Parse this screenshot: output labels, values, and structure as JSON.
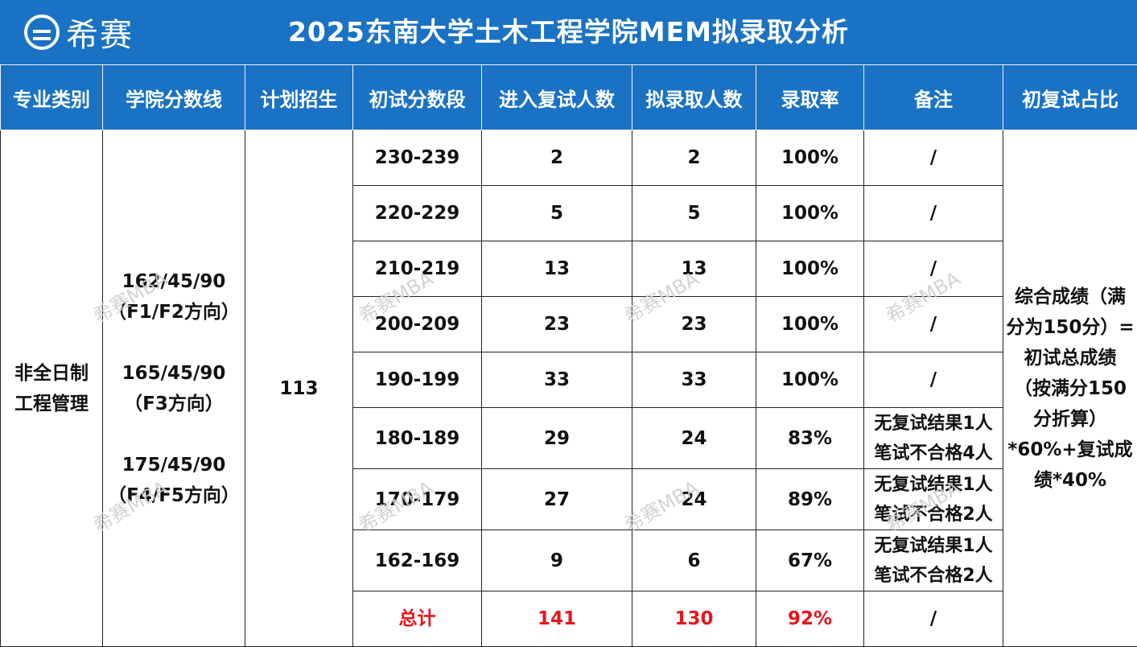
{
  "header": {
    "logo_text": "希赛",
    "title": "2025东南大学土木工程学院MEM拟录取分析"
  },
  "columns": [
    "专业类别",
    "学院分数线",
    "计划招生",
    "初试分数段",
    "进入复试人数",
    "拟录取人数",
    "录取率",
    "备注",
    "初复试占比"
  ],
  "merged": {
    "category_line1": "非全日制",
    "category_line2": "工程管理",
    "cutoff_1": "162/45/90",
    "cutoff_1_dir": "（F1/F2方向）",
    "cutoff_2": "165/45/90",
    "cutoff_2_dir": "（F3方向）",
    "cutoff_3": "175/45/90",
    "cutoff_3_dir": "（F4/F5方向）",
    "plan": "113",
    "ratio_l1": "综合成绩（满",
    "ratio_l2": "分为150分）=",
    "ratio_l3": "初试总成绩",
    "ratio_l4": "（按满分150",
    "ratio_l5": "分折算）",
    "ratio_l6": "*60%+复试成",
    "ratio_l7": "绩*40%"
  },
  "rows": [
    {
      "range": "230-239",
      "retest": "2",
      "admit": "2",
      "rate": "100%",
      "note1": "/",
      "note2": ""
    },
    {
      "range": "220-229",
      "retest": "5",
      "admit": "5",
      "rate": "100%",
      "note1": "/",
      "note2": ""
    },
    {
      "range": "210-219",
      "retest": "13",
      "admit": "13",
      "rate": "100%",
      "note1": "/",
      "note2": ""
    },
    {
      "range": "200-209",
      "retest": "23",
      "admit": "23",
      "rate": "100%",
      "note1": "/",
      "note2": ""
    },
    {
      "range": "190-199",
      "retest": "33",
      "admit": "33",
      "rate": "100%",
      "note1": "/",
      "note2": ""
    },
    {
      "range": "180-189",
      "retest": "29",
      "admit": "24",
      "rate": "83%",
      "note1": "无复试结果1人",
      "note2": "笔试不合格4人"
    },
    {
      "range": "170-179",
      "retest": "27",
      "admit": "24",
      "rate": "89%",
      "note1": "无复试结果1人",
      "note2": "笔试不合格2人"
    },
    {
      "range": "162-169",
      "retest": "9",
      "admit": "6",
      "rate": "67%",
      "note1": "无复试结果1人",
      "note2": "笔试不合格2人"
    }
  ],
  "total": {
    "label": "总计",
    "retest": "141",
    "admit": "130",
    "rate": "92%",
    "note": "/"
  },
  "watermark": "希赛MBA",
  "colors": {
    "header_bg": "#1a72c4",
    "total_text": "#e8141b"
  }
}
